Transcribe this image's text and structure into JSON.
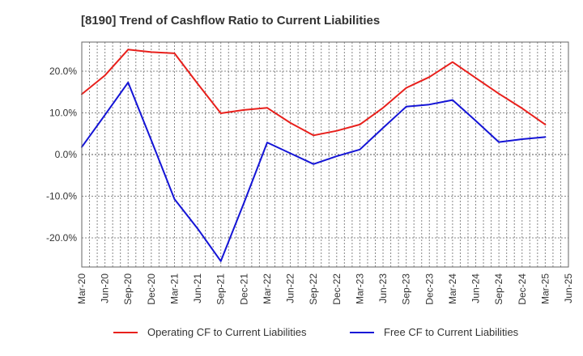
{
  "chart_data": {
    "type": "line",
    "title": "[8190]  Trend of Cashflow Ratio to Current Liabilities",
    "xlabel": "",
    "ylabel": "",
    "x": [
      "Mar-20",
      "Jun-20",
      "Sep-20",
      "Dec-20",
      "Mar-21",
      "Jun-21",
      "Sep-21",
      "Dec-21",
      "Mar-22",
      "Jun-22",
      "Sep-22",
      "Dec-22",
      "Mar-23",
      "Jun-23",
      "Sep-23",
      "Dec-23",
      "Mar-24",
      "Jun-24",
      "Sep-24",
      "Dec-24",
      "Mar-25",
      "Jun-25"
    ],
    "series": [
      {
        "name": "Operating CF to Current Liabilities",
        "color": "#e8201c",
        "values": [
          14.5,
          19.0,
          25.2,
          24.6,
          24.3,
          17.0,
          9.9,
          10.7,
          11.2,
          7.6,
          4.6,
          5.7,
          7.2,
          11.2,
          16.0,
          18.6,
          22.2,
          18.4,
          14.6,
          11.1,
          7.2,
          null
        ]
      },
      {
        "name": "Free CF to Current Liabilities",
        "color": "#1414d6",
        "values": [
          1.8,
          9.5,
          17.3,
          3.4,
          -10.7,
          -17.8,
          -25.6,
          -11.6,
          2.9,
          0.3,
          -2.3,
          -0.4,
          1.2,
          6.4,
          11.5,
          12.0,
          13.1,
          8.1,
          3.0,
          3.7,
          4.2,
          null
        ]
      }
    ],
    "yticks": [
      -20,
      -10,
      0,
      10,
      20
    ],
    "ytick_labels": [
      "-20.0%",
      "-10.0%",
      "0.0%",
      "10.0%",
      "20.0%"
    ],
    "ylim": [
      -27,
      27
    ],
    "grid": true,
    "legend_position": "bottom"
  }
}
